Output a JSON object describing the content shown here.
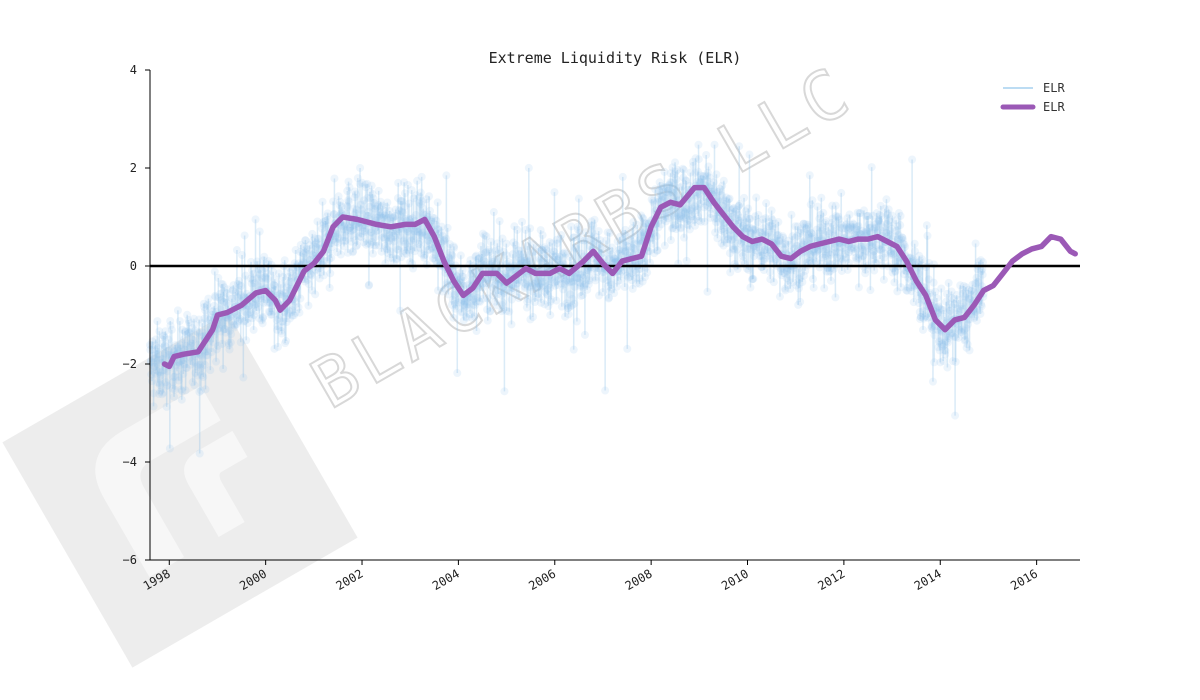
{
  "chart_data": {
    "type": "line",
    "title": "Extreme Liquidity Risk (ELR)",
    "xlabel": "",
    "ylabel": "",
    "x_range": [
      1997.6,
      2016.9
    ],
    "ylim": [
      -6,
      4
    ],
    "yticks": [
      -6,
      -4,
      -2,
      0,
      2,
      4
    ],
    "yticklabels": [
      "−6",
      "−4",
      "−2",
      "0",
      "2",
      "4"
    ],
    "xticks": [
      1998,
      2000,
      2002,
      2004,
      2006,
      2008,
      2010,
      2012,
      2014,
      2016
    ],
    "xticklabels": [
      "1998",
      "2000",
      "2002",
      "2004",
      "2006",
      "2008",
      "2010",
      "2012",
      "2014",
      "2016"
    ],
    "zero_line": 0,
    "grid": false,
    "legend_position": "top-right",
    "series": [
      {
        "name": "ELR",
        "style": "daily, faint markers",
        "color": "#8ec3ea",
        "note": "dense noisy daily series; approximate envelope follows smoothed series with spread ~±0.8"
      },
      {
        "name": "ELR",
        "style": "smoothed, thick line",
        "color": "#9b59b6",
        "x": [
          1997.9,
          1998.0,
          1998.1,
          1998.3,
          1998.6,
          1998.9,
          1999.0,
          1999.2,
          1999.5,
          1999.8,
          2000.0,
          2000.2,
          2000.3,
          2000.5,
          2000.8,
          2001.0,
          2001.2,
          2001.4,
          2001.6,
          2001.9,
          2002.1,
          2002.3,
          2002.6,
          2002.9,
          2003.1,
          2003.3,
          2003.5,
          2003.7,
          2003.9,
          2004.1,
          2004.3,
          2004.5,
          2004.8,
          2005.0,
          2005.2,
          2005.4,
          2005.6,
          2005.9,
          2006.1,
          2006.3,
          2006.6,
          2006.8,
          2007.0,
          2007.2,
          2007.4,
          2007.6,
          2007.8,
          2008.0,
          2008.2,
          2008.4,
          2008.6,
          2008.9,
          2009.1,
          2009.3,
          2009.5,
          2009.7,
          2009.9,
          2010.1,
          2010.3,
          2010.5,
          2010.7,
          2010.9,
          2011.1,
          2011.3,
          2011.5,
          2011.7,
          2011.9,
          2012.1,
          2012.3,
          2012.5,
          2012.7,
          2012.9,
          2013.1,
          2013.3,
          2013.5,
          2013.7,
          2013.9,
          2014.1,
          2014.3,
          2014.5,
          2014.7,
          2014.9,
          2015.1,
          2015.3,
          2015.5,
          2015.7,
          2015.9,
          2016.1,
          2016.3,
          2016.5,
          2016.7,
          2016.8
        ],
        "y": [
          -2.0,
          -2.05,
          -1.85,
          -1.8,
          -1.75,
          -1.3,
          -1.0,
          -0.95,
          -0.8,
          -0.55,
          -0.5,
          -0.7,
          -0.9,
          -0.7,
          -0.1,
          0.05,
          0.3,
          0.8,
          1.0,
          0.95,
          0.9,
          0.85,
          0.8,
          0.85,
          0.85,
          0.95,
          0.6,
          0.1,
          -0.3,
          -0.6,
          -0.45,
          -0.15,
          -0.15,
          -0.35,
          -0.2,
          -0.05,
          -0.15,
          -0.15,
          -0.05,
          -0.15,
          0.1,
          0.3,
          0.05,
          -0.15,
          0.1,
          0.15,
          0.2,
          0.8,
          1.2,
          1.3,
          1.25,
          1.6,
          1.6,
          1.3,
          1.05,
          0.8,
          0.6,
          0.5,
          0.55,
          0.45,
          0.2,
          0.15,
          0.3,
          0.4,
          0.45,
          0.5,
          0.55,
          0.5,
          0.55,
          0.55,
          0.6,
          0.5,
          0.4,
          0.1,
          -0.3,
          -0.6,
          -1.1,
          -1.3,
          -1.1,
          -1.05,
          -0.8,
          -0.5,
          -0.4,
          -0.15,
          0.1,
          0.25,
          0.35,
          0.4,
          0.6,
          0.55,
          0.3,
          0.25
        ]
      }
    ],
    "annotations": [
      {
        "kind": "watermark",
        "text": "BLACKARBS LLC",
        "color": "#dcdcdc"
      },
      {
        "kind": "logo-watermark",
        "color": "#e4e4e4"
      }
    ]
  }
}
